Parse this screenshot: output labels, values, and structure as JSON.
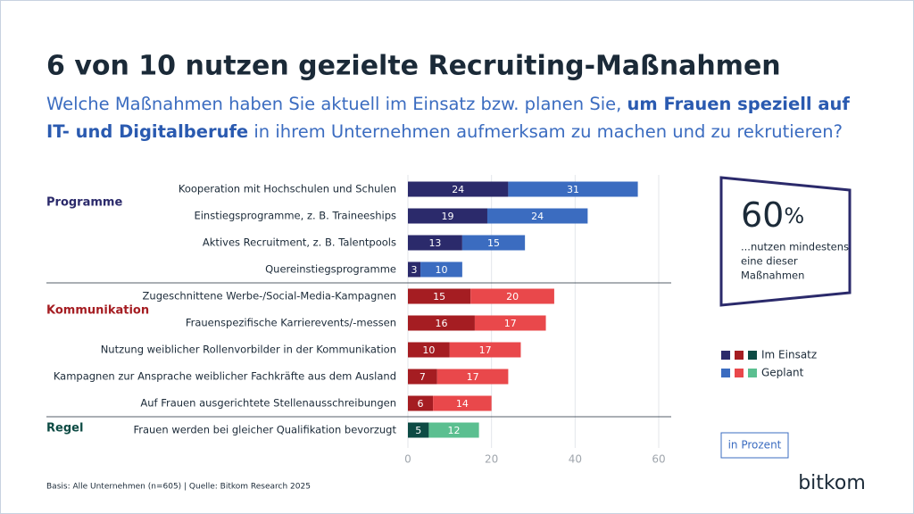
{
  "chart_data": {
    "type": "bar",
    "title": "6 von 10 nutzen gezielte Recruiting-Maßnahmen",
    "subtitle": [
      [
        {
          "text": "Welche Maßnahmen haben Sie aktuell im Einsatz bzw. planen Sie, ",
          "bold": false
        },
        {
          "text": "um Frauen speziell auf",
          "bold": true
        }
      ],
      [
        {
          "text": "IT- und Digitalberufe",
          "bold": true
        },
        {
          "text": " in ihrem Unternehmen aufmerksam zu machen und zu rekrutieren?",
          "bold": false
        }
      ]
    ],
    "series_names": [
      "Im Einsatz",
      "Geplant"
    ],
    "groups": [
      {
        "name": "Programme",
        "categories": [
          "Kooperation mit Hochschulen und Schulen",
          "Einstiegsprogramme, z. B. Traineeships",
          "Aktives Recruitment, z. B. Talentpools",
          "Quereinstiegsprogramme"
        ],
        "series": [
          {
            "color": "#2b2a6b",
            "values": [
              24,
              19,
              13,
              3
            ]
          },
          {
            "color": "#3b6cc0",
            "values": [
              31,
              24,
              15,
              10
            ]
          }
        ]
      },
      {
        "name": "Kommunikation",
        "categories": [
          "Zugeschnittene Werbe-/Social-Media-Kampagnen",
          "Frauenspezifische Karrierevents/-messen",
          "Nutzung weiblicher Rollenvorbilder in der Kommunikation",
          "Kampagnen zur Ansprache weiblicher Fachkräfte aus dem Ausland",
          "Auf Frauen ausgerichtete Stellenausschreibungen"
        ],
        "series": [
          {
            "color": "#a51d22",
            "values": [
              15,
              16,
              10,
              7,
              6
            ]
          },
          {
            "color": "#e9484b",
            "values": [
              20,
              17,
              17,
              17,
              14
            ]
          }
        ]
      },
      {
        "name": "Regel",
        "categories": [
          "Frauen werden bei gleicher Qualifikation bevorzugt"
        ],
        "series": [
          {
            "color": "#0d4b44",
            "values": [
              5
            ]
          },
          {
            "color": "#5bbf90",
            "values": [
              12
            ]
          }
        ]
      }
    ],
    "xlim": [
      0,
      60
    ],
    "xticks": [
      0,
      20,
      40,
      60
    ],
    "grid": true,
    "callout": {
      "number": 60,
      "unit": "%",
      "lines": [
        "...nutzen mindestens",
        "eine dieser",
        "Maßnahmen"
      ]
    },
    "unit_note": "in Prozent",
    "footnote": "Basis: Alle Unternehmen (n=605) | Quelle: Bitkom Research 2025",
    "logo": "bitkom"
  }
}
